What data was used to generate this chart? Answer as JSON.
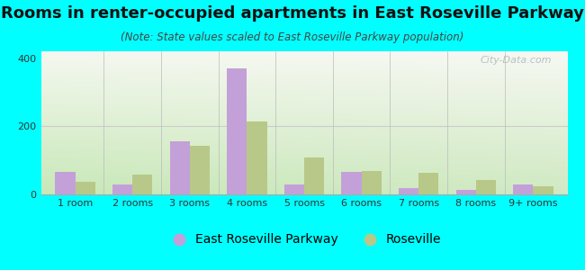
{
  "title": "Rooms in renter-occupied apartments in East Roseville Parkway",
  "subtitle": "(Note: State values scaled to East Roseville Parkway population)",
  "categories": [
    "1 room",
    "2 rooms",
    "3 rooms",
    "4 rooms",
    "5 rooms",
    "6 rooms",
    "7 rooms",
    "8 rooms",
    "9+ rooms"
  ],
  "east_roseville": [
    65,
    28,
    155,
    370,
    28,
    65,
    18,
    12,
    28
  ],
  "roseville": [
    38,
    58,
    143,
    213,
    108,
    70,
    63,
    43,
    25
  ],
  "east_roseville_color": "#c4a0d8",
  "roseville_color": "#b8c888",
  "bar_width": 0.35,
  "ylim": [
    0,
    420
  ],
  "yticks": [
    0,
    200,
    400
  ],
  "fig_bg_color": "#00ffff",
  "chart_bg_colors": [
    "#c8e8b8",
    "#f0f5e8"
  ],
  "title_fontsize": 13,
  "subtitle_fontsize": 8.5,
  "tick_fontsize": 8,
  "legend_fontsize": 10,
  "watermark_text": "City-Data.com",
  "title_color": "#111111",
  "subtitle_color": "#444444",
  "tick_color": "#333333"
}
